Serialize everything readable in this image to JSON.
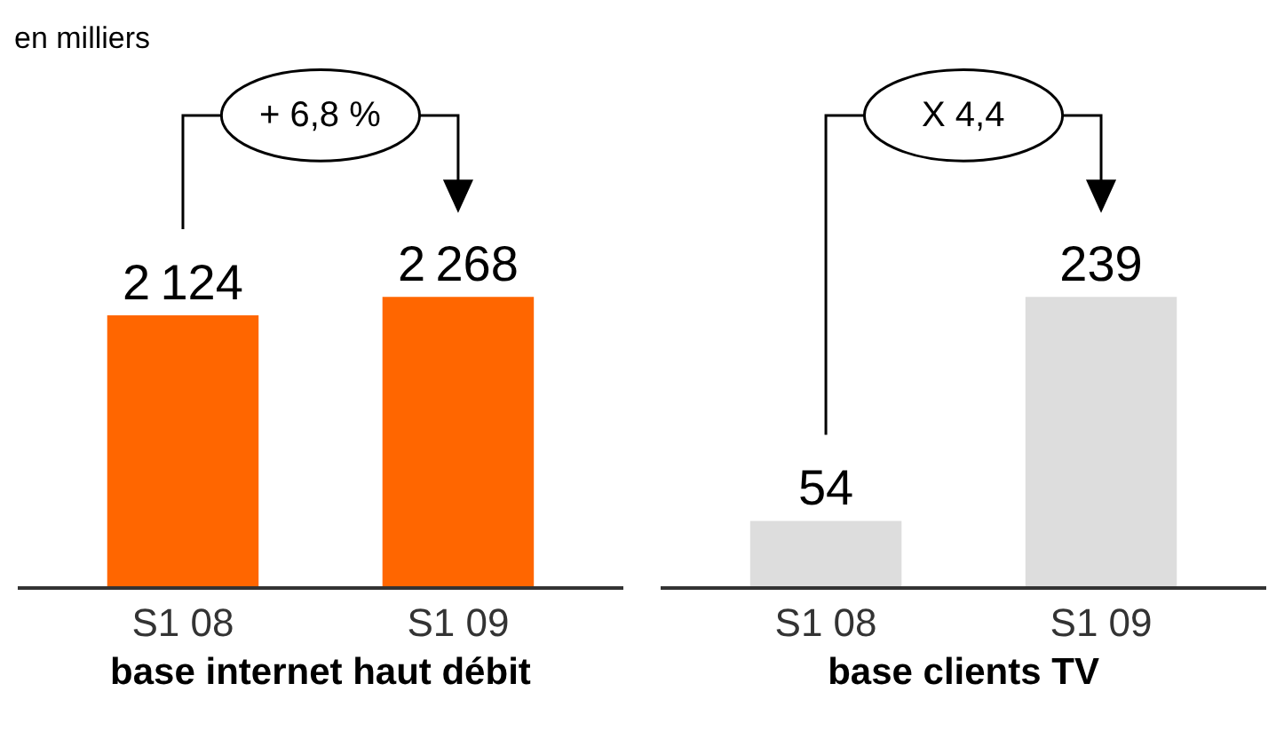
{
  "chart_data": [
    {
      "type": "bar",
      "categories": [
        "S1 08",
        "S1 09"
      ],
      "values": [
        2124,
        2268
      ],
      "color": "#ff6600",
      "data_labels": true,
      "xlabel": "base internet haut débit",
      "subtitle": "en milliers",
      "annotations": [
        "+ 6,8 %"
      ]
    },
    {
      "type": "bar",
      "categories": [
        "S1 08",
        "S1 09"
      ],
      "values": [
        54,
        239
      ],
      "color": "#dddddd",
      "data_labels": true,
      "xlabel": "base clients TV",
      "annotations": [
        "X 4,4"
      ]
    }
  ]
}
